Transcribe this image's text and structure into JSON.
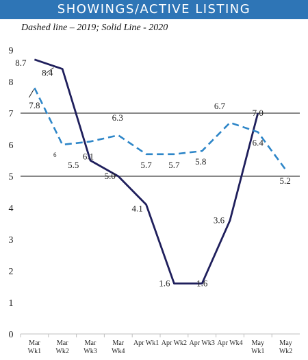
{
  "chart_data": {
    "type": "line",
    "title": "SHOWINGS/ACTIVE LISTING",
    "subtitle": "Dashed line – 2019; Solid Line - 2020",
    "categories": [
      [
        "Mar",
        "Wk1"
      ],
      [
        "Mar",
        "Wk2"
      ],
      [
        "Mar",
        "Wk3"
      ],
      [
        "Mar",
        "Wk4"
      ],
      [
        "Apr Wk1"
      ],
      [
        "Apr Wk2"
      ],
      [
        "Apr Wk3"
      ],
      [
        "Apr Wk4"
      ],
      [
        "May",
        "Wk1"
      ],
      [
        "May",
        "Wk2"
      ]
    ],
    "ylim": [
      0,
      9
    ],
    "yticks": [
      0,
      1,
      2,
      3,
      4,
      5,
      6,
      7,
      8,
      9
    ],
    "reference_lines": [
      5,
      7
    ],
    "series": [
      {
        "style": "solid",
        "color": "#1f1f5c",
        "values": [
          8.7,
          8.4,
          5.5,
          5.0,
          4.1,
          1.6,
          1.6,
          3.6,
          7.0,
          null
        ],
        "labels": [
          "8.7",
          "8.4",
          "",
          "5.0",
          "4.1",
          "1.6",
          "1.6",
          "3.6",
          "7.0",
          ""
        ]
      },
      {
        "style": "dashed",
        "color": "#2e86c8",
        "values": [
          7.8,
          6.0,
          6.1,
          6.3,
          5.7,
          5.7,
          5.8,
          6.7,
          6.4,
          5.2
        ],
        "labels": [
          "7.8",
          "6",
          "6.1",
          "6.3",
          "5.7",
          "5.7",
          "5.8",
          "6.7",
          "6.4",
          "5.2"
        ]
      }
    ],
    "extra_labels": [
      "5.5"
    ]
  }
}
